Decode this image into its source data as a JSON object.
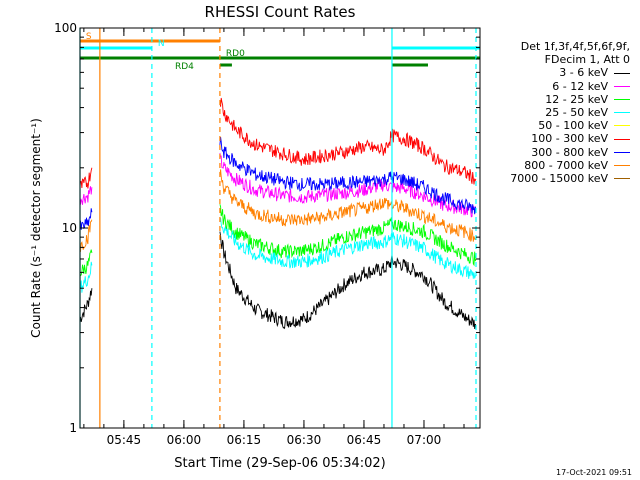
{
  "chart_data": {
    "type": "line",
    "title": "RHESSI Count Rates",
    "xlabel": "Start Time (29-Sep-06 05:34:02)",
    "ylabel": "Count Rate (s⁻¹ detector segment⁻¹)",
    "yscale": "log",
    "ylim": [
      1,
      100
    ],
    "xlim": [
      "05:34:02",
      "07:14:00"
    ],
    "y_ticks": [
      "1",
      "10",
      "100"
    ],
    "x_ticks": [
      "05:45",
      "06:00",
      "06:15",
      "06:30",
      "06:45",
      "07:00"
    ],
    "legend_header": [
      "Det 1f,3f,4f,5f,6f,9f,",
      "FDecim 1, Att 0"
    ],
    "series": [
      {
        "name": "3 - 6 keV",
        "color": "#000000",
        "points": [
          [
            "05:34",
            3.5
          ],
          [
            "05:36",
            4.2
          ],
          [
            "05:37",
            5.0
          ],
          [
            "06:09",
            9.5
          ],
          [
            "06:10",
            7.5
          ],
          [
            "06:13",
            5.0
          ],
          [
            "06:18",
            3.9
          ],
          [
            "06:25",
            3.4
          ],
          [
            "06:30",
            3.5
          ],
          [
            "06:35",
            4.2
          ],
          [
            "06:40",
            5.2
          ],
          [
            "06:45",
            6.0
          ],
          [
            "06:50",
            6.2
          ],
          [
            "06:52",
            6.8
          ],
          [
            "06:55",
            6.5
          ],
          [
            "07:00",
            5.8
          ],
          [
            "07:05",
            4.3
          ],
          [
            "07:10",
            3.6
          ],
          [
            "07:13",
            3.3
          ]
        ]
      },
      {
        "name": "6 - 12 keV",
        "color": "#ff00ff",
        "points": [
          [
            "05:34",
            14.0
          ],
          [
            "05:36",
            14.5
          ],
          [
            "05:37",
            16.0
          ],
          [
            "06:09",
            22.0
          ],
          [
            "06:10",
            20.0
          ],
          [
            "06:13",
            17.5
          ],
          [
            "06:18",
            15.5
          ],
          [
            "06:25",
            14.5
          ],
          [
            "06:30",
            14.3
          ],
          [
            "06:35",
            14.6
          ],
          [
            "06:40",
            15.0
          ],
          [
            "06:45",
            15.5
          ],
          [
            "06:50",
            16.5
          ],
          [
            "06:52",
            16.0
          ],
          [
            "06:55",
            15.8
          ],
          [
            "07:00",
            14.5
          ],
          [
            "07:05",
            13.0
          ],
          [
            "07:10",
            12.5
          ],
          [
            "07:13",
            12.0
          ]
        ]
      },
      {
        "name": "12 - 25 keV",
        "color": "#00ff00",
        "points": [
          [
            "05:34",
            6.0
          ],
          [
            "05:36",
            6.5
          ],
          [
            "05:37",
            7.5
          ],
          [
            "06:09",
            12.5
          ],
          [
            "06:10",
            11.0
          ],
          [
            "06:13",
            9.5
          ],
          [
            "06:18",
            8.3
          ],
          [
            "06:25",
            7.6
          ],
          [
            "06:30",
            7.7
          ],
          [
            "06:35",
            8.2
          ],
          [
            "06:40",
            9.0
          ],
          [
            "06:45",
            9.5
          ],
          [
            "06:50",
            10.0
          ],
          [
            "06:52",
            10.5
          ],
          [
            "06:55",
            10.2
          ],
          [
            "07:00",
            9.6
          ],
          [
            "07:05",
            8.3
          ],
          [
            "07:10",
            7.4
          ],
          [
            "07:13",
            7.0
          ]
        ]
      },
      {
        "name": "25 - 50 keV",
        "color": "#00ffff",
        "points": [
          [
            "05:34",
            5.0
          ],
          [
            "05:36",
            5.6
          ],
          [
            "05:37",
            6.5
          ],
          [
            "06:09",
            11.0
          ],
          [
            "06:10",
            10.0
          ],
          [
            "06:13",
            8.5
          ],
          [
            "06:18",
            7.3
          ],
          [
            "06:25",
            6.8
          ],
          [
            "06:30",
            6.8
          ],
          [
            "06:35",
            7.2
          ],
          [
            "06:40",
            7.8
          ],
          [
            "06:45",
            8.3
          ],
          [
            "06:50",
            8.5
          ],
          [
            "06:52",
            9.0
          ],
          [
            "06:55",
            8.6
          ],
          [
            "07:00",
            7.9
          ],
          [
            "07:05",
            6.7
          ],
          [
            "07:10",
            6.1
          ],
          [
            "07:13",
            5.8
          ]
        ]
      },
      {
        "name": "50 - 100 keV",
        "color": "#ffff00",
        "points": []
      },
      {
        "name": "100 - 300 keV",
        "color": "#ff0000",
        "points": [
          [
            "05:34",
            16.0
          ],
          [
            "05:36",
            17.0
          ],
          [
            "05:37",
            20.0
          ],
          [
            "06:09",
            45.0
          ],
          [
            "06:10",
            38.0
          ],
          [
            "06:13",
            31.0
          ],
          [
            "06:18",
            26.0
          ],
          [
            "06:25",
            23.5
          ],
          [
            "06:30",
            22.0
          ],
          [
            "06:35",
            23.0
          ],
          [
            "06:40",
            24.0
          ],
          [
            "06:45",
            25.5
          ],
          [
            "06:50",
            24.5
          ],
          [
            "06:52",
            29.0
          ],
          [
            "06:55",
            28.0
          ],
          [
            "07:00",
            25.0
          ],
          [
            "07:05",
            20.5
          ],
          [
            "07:10",
            19.0
          ],
          [
            "07:13",
            17.5
          ]
        ]
      },
      {
        "name": "300 - 800 keV",
        "color": "#0000ff",
        "points": [
          [
            "05:34",
            10.0
          ],
          [
            "05:36",
            10.5
          ],
          [
            "05:37",
            12.0
          ],
          [
            "06:09",
            27.0
          ],
          [
            "06:10",
            24.0
          ],
          [
            "06:13",
            21.0
          ],
          [
            "06:18",
            18.5
          ],
          [
            "06:25",
            17.0
          ],
          [
            "06:30",
            16.5
          ],
          [
            "06:35",
            16.5
          ],
          [
            "06:40",
            16.8
          ],
          [
            "06:45",
            17.0
          ],
          [
            "06:50",
            17.5
          ],
          [
            "06:52",
            18.0
          ],
          [
            "06:55",
            17.5
          ],
          [
            "07:00",
            16.0
          ],
          [
            "07:05",
            14.0
          ],
          [
            "07:10",
            13.0
          ],
          [
            "07:13",
            12.5
          ]
        ]
      },
      {
        "name": "800 - 7000 keV",
        "color": "#ff8000",
        "points": [
          [
            "05:34",
            8.0
          ],
          [
            "05:36",
            9.0
          ],
          [
            "05:37",
            11.0
          ],
          [
            "06:09",
            19.0
          ],
          [
            "06:10",
            16.0
          ],
          [
            "06:13",
            13.5
          ],
          [
            "06:18",
            11.8
          ],
          [
            "06:25",
            11.0
          ],
          [
            "06:30",
            11.0
          ],
          [
            "06:35",
            11.3
          ],
          [
            "06:40",
            12.0
          ],
          [
            "06:45",
            12.5
          ],
          [
            "06:50",
            13.5
          ],
          [
            "06:52",
            13.0
          ],
          [
            "06:55",
            12.6
          ],
          [
            "07:00",
            11.5
          ],
          [
            "07:05",
            10.3
          ],
          [
            "07:10",
            9.6
          ],
          [
            "07:13",
            9.0
          ]
        ]
      },
      {
        "name": "7000 - 15000 keV",
        "color": "#a06000",
        "points": []
      }
    ],
    "vlines": [
      {
        "t": "05:34:02",
        "color": "#00ffff",
        "style": "solid"
      },
      {
        "t": "05:39:00",
        "color": "#ff8000",
        "style": "solid"
      },
      {
        "t": "05:52:00",
        "color": "#00ffff",
        "style": "dashed"
      },
      {
        "t": "06:09:00",
        "color": "#ff8000",
        "style": "dashed"
      },
      {
        "t": "06:52:00",
        "color": "#00ffff",
        "style": "solid"
      },
      {
        "t": "07:13:00",
        "color": "#00ffff",
        "style": "dashed"
      }
    ],
    "flag_bars": [
      {
        "label": "S",
        "color": "#ff8000",
        "segments": [
          [
            "05:34:02",
            "06:09:00"
          ]
        ],
        "label_at": "05:35:00",
        "level": 0
      },
      {
        "label": "N",
        "color": "#00ffff",
        "segments": [
          [
            "05:34:02",
            "05:52:00"
          ],
          [
            "06:52:00",
            "07:14:00"
          ]
        ],
        "label_at": "05:53:00",
        "level": 1
      },
      {
        "label": "RD0",
        "color": "#008000",
        "segments": [
          [
            "05:34:02",
            "06:52:00"
          ],
          [
            "06:52:00",
            "07:14:00"
          ]
        ],
        "label_at": "06:10:00",
        "level": 2
      },
      {
        "label": "RD4",
        "color": "#008000",
        "segments": [
          [
            "06:09:00",
            "06:12:00"
          ],
          [
            "06:52:00",
            "07:01:00"
          ]
        ],
        "label_at": "06:02:00",
        "level": 3
      }
    ]
  },
  "footer_timestamp": "17-Oct-2021 09:51"
}
